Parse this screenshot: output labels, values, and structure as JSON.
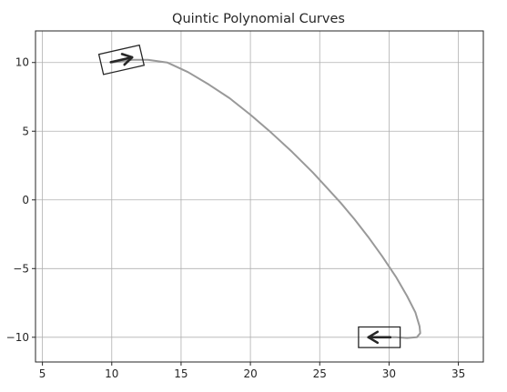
{
  "chart_data": {
    "type": "line",
    "title": "Quintic Polynomial Curves",
    "xlabel": "",
    "ylabel": "",
    "xlim": [
      4.5,
      36.8
    ],
    "ylim": [
      -11.8,
      12.3
    ],
    "x_ticks": [
      5,
      10,
      15,
      20,
      25,
      30,
      35
    ],
    "y_ticks": [
      10,
      5,
      0,
      -5,
      -10
    ],
    "x_tick_labels": [
      "5",
      "10",
      "15",
      "20",
      "25",
      "30",
      "35"
    ],
    "y_tick_labels": [
      "10",
      "5",
      "0",
      "−5",
      "−10"
    ],
    "grid": true,
    "series": [
      {
        "color": "#999999",
        "x": [
          10.0,
          11.5,
          12.6,
          14.0,
          15.5,
          17.0,
          18.5,
          20.0,
          21.5,
          23.0,
          24.5,
          25.5,
          26.5,
          27.5,
          28.5,
          29.5,
          30.5,
          31.3,
          31.9,
          32.2,
          32.25,
          32.0,
          31.3,
          30.5,
          30.0
        ],
        "y": [
          10.0,
          10.2,
          10.2,
          10.0,
          9.3,
          8.4,
          7.4,
          6.2,
          4.9,
          3.5,
          2.0,
          0.9,
          -0.2,
          -1.4,
          -2.7,
          -4.1,
          -5.6,
          -7.0,
          -8.2,
          -9.2,
          -9.7,
          -10.0,
          -10.05,
          -10.0,
          -10.0
        ]
      }
    ],
    "vehicles": [
      {
        "x": 10.7,
        "y": 10.2,
        "yaw_deg": 13,
        "length": 3.0,
        "width": 1.5,
        "direction": "right",
        "color": "#262626"
      },
      {
        "x": 29.3,
        "y": -10.0,
        "yaw_deg": 180,
        "length": 3.0,
        "width": 1.5,
        "direction": "left",
        "color": "#262626"
      }
    ]
  }
}
